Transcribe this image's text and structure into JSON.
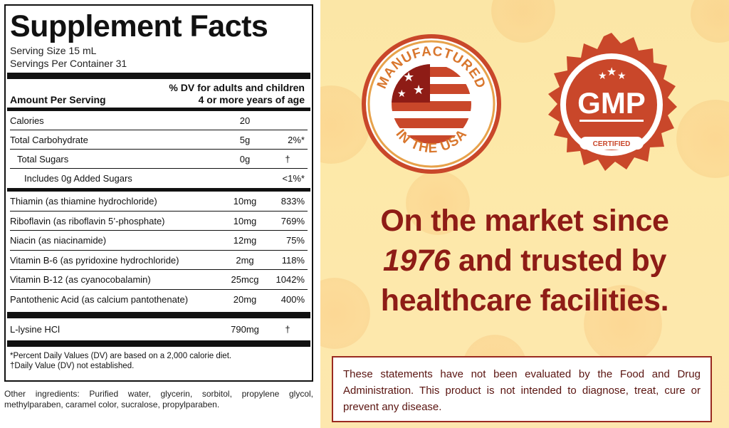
{
  "facts": {
    "title": "Supplement Facts",
    "serving_size": "Serving Size 15 mL",
    "servings_per_container": "Servings Per Container 31",
    "amount_per_serving": "Amount Per Serving",
    "dv_header_line1": "% DV for adults and children",
    "dv_header_line2": "4 or more years of age",
    "rows_group1": [
      {
        "name": "Calories",
        "amount": "20",
        "dv": ""
      },
      {
        "name": "Total Carbohydrate",
        "amount": "5g",
        "dv": "2%*"
      },
      {
        "name": "Total Sugars",
        "amount": "0g",
        "dv": "†"
      },
      {
        "name": "Includes 0g Added Sugars",
        "amount": "",
        "dv": "<1%*"
      }
    ],
    "rows_group2": [
      {
        "name": "Thiamin (as thiamine hydrochloride)",
        "amount": "10mg",
        "dv": "833%"
      },
      {
        "name": "Riboflavin (as riboflavin 5’-phosphate)",
        "amount": "10mg",
        "dv": "769%"
      },
      {
        "name": "Niacin (as niacinamide)",
        "amount": "12mg",
        "dv": "75%"
      },
      {
        "name": "Vitamin B-6 (as pyridoxine hydrochloride)",
        "amount": "2mg",
        "dv": "118%"
      },
      {
        "name": "Vitamin B-12 (as cyanocobalamin)",
        "amount": "25mcg",
        "dv": "1042%"
      },
      {
        "name": "Pantothenic Acid (as calcium pantothenate)",
        "amount": "20mg",
        "dv": "400%"
      }
    ],
    "rows_group3": [
      {
        "name": "L-lysine HCl",
        "amount": "790mg",
        "dv": "†"
      }
    ],
    "footnote1": "*Percent Daily Values (DV) are based on a 2,000 calorie diet.",
    "footnote2": "†Daily Value (DV) not established.",
    "other_ingredients": "Other ingredients: Purified water, glycerin, sorbitol, propylene glycol, methylparaben, caramel color, sucralose, propylparaben."
  },
  "promo": {
    "badge_usa_top": "MANUFACTURED",
    "badge_usa_bottom": "IN THE USA",
    "badge_gmp_main": "GMP",
    "badge_gmp_sub": "CERTIFIED",
    "headline_line1": "On the market since",
    "headline_year": "1976",
    "headline_line2_rest": " and trusted by",
    "headline_line3": "healthcare facilities.",
    "disclaimer": "These statements have not been evaluated by the Food and Drug Administration. This product is not intended to diagnose, treat, cure or prevent any disease."
  },
  "colors": {
    "brand_red": "#8e1c16",
    "badge_orange": "#c9472a",
    "background_yellow": "#fde9a9"
  }
}
